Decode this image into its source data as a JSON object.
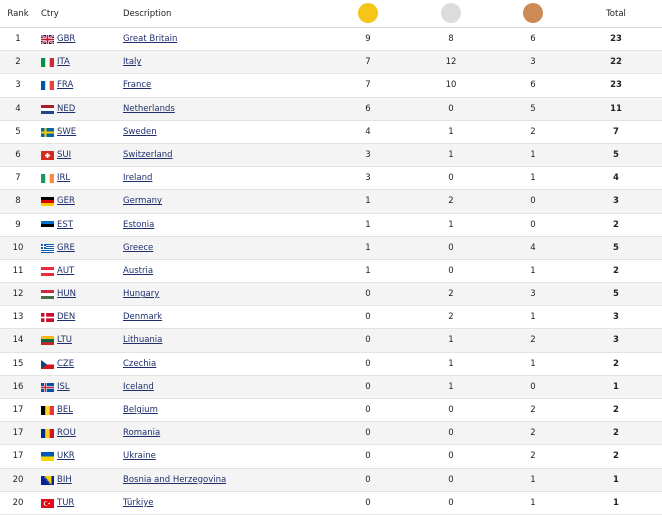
{
  "header": {
    "rank": "Rank",
    "ctry": "Ctry",
    "description": "Description",
    "total": "Total"
  },
  "colors": {
    "gold": "#f5c518",
    "silver": "#dcdcdc",
    "bronze": "#cd8a55",
    "link": "#1f2f6b"
  },
  "rows": [
    {
      "rank": "1",
      "code": "GBR",
      "name": "Great Britain",
      "gold": "9",
      "silver": "8",
      "bronze": "6",
      "total": "23",
      "flag": "gb-flag-icon"
    },
    {
      "rank": "2",
      "code": "ITA",
      "name": "Italy",
      "gold": "7",
      "silver": "12",
      "bronze": "3",
      "total": "22",
      "flag": "it-flag-icon"
    },
    {
      "rank": "3",
      "code": "FRA",
      "name": "France",
      "gold": "7",
      "silver": "10",
      "bronze": "6",
      "total": "23",
      "flag": "fr-flag-icon"
    },
    {
      "rank": "4",
      "code": "NED",
      "name": "Netherlands",
      "gold": "6",
      "silver": "0",
      "bronze": "5",
      "total": "11",
      "flag": "nl-flag-icon"
    },
    {
      "rank": "5",
      "code": "SWE",
      "name": "Sweden",
      "gold": "4",
      "silver": "1",
      "bronze": "2",
      "total": "7",
      "flag": "se-flag-icon"
    },
    {
      "rank": "6",
      "code": "SUI",
      "name": "Switzerland",
      "gold": "3",
      "silver": "1",
      "bronze": "1",
      "total": "5",
      "flag": "ch-flag-icon"
    },
    {
      "rank": "7",
      "code": "IRL",
      "name": "Ireland",
      "gold": "3",
      "silver": "0",
      "bronze": "1",
      "total": "4",
      "flag": "ie-flag-icon"
    },
    {
      "rank": "8",
      "code": "GER",
      "name": "Germany",
      "gold": "1",
      "silver": "2",
      "bronze": "0",
      "total": "3",
      "flag": "de-flag-icon"
    },
    {
      "rank": "9",
      "code": "EST",
      "name": "Estonia",
      "gold": "1",
      "silver": "1",
      "bronze": "0",
      "total": "2",
      "flag": "ee-flag-icon"
    },
    {
      "rank": "10",
      "code": "GRE",
      "name": "Greece",
      "gold": "1",
      "silver": "0",
      "bronze": "4",
      "total": "5",
      "flag": "gr-flag-icon"
    },
    {
      "rank": "11",
      "code": "AUT",
      "name": "Austria",
      "gold": "1",
      "silver": "0",
      "bronze": "1",
      "total": "2",
      "flag": "at-flag-icon"
    },
    {
      "rank": "12",
      "code": "HUN",
      "name": "Hungary",
      "gold": "0",
      "silver": "2",
      "bronze": "3",
      "total": "5",
      "flag": "hu-flag-icon"
    },
    {
      "rank": "13",
      "code": "DEN",
      "name": "Denmark",
      "gold": "0",
      "silver": "2",
      "bronze": "1",
      "total": "3",
      "flag": "dk-flag-icon"
    },
    {
      "rank": "14",
      "code": "LTU",
      "name": "Lithuania",
      "gold": "0",
      "silver": "1",
      "bronze": "2",
      "total": "3",
      "flag": "lt-flag-icon"
    },
    {
      "rank": "15",
      "code": "CZE",
      "name": "Czechia",
      "gold": "0",
      "silver": "1",
      "bronze": "1",
      "total": "2",
      "flag": "cz-flag-icon"
    },
    {
      "rank": "16",
      "code": "ISL",
      "name": "Iceland",
      "gold": "0",
      "silver": "1",
      "bronze": "0",
      "total": "1",
      "flag": "is-flag-icon"
    },
    {
      "rank": "17",
      "code": "BEL",
      "name": "Belgium",
      "gold": "0",
      "silver": "0",
      "bronze": "2",
      "total": "2",
      "flag": "be-flag-icon"
    },
    {
      "rank": "17",
      "code": "ROU",
      "name": "Romania",
      "gold": "0",
      "silver": "0",
      "bronze": "2",
      "total": "2",
      "flag": "ro-flag-icon"
    },
    {
      "rank": "17",
      "code": "UKR",
      "name": "Ukraine",
      "gold": "0",
      "silver": "0",
      "bronze": "2",
      "total": "2",
      "flag": "ua-flag-icon"
    },
    {
      "rank": "20",
      "code": "BIH",
      "name": "Bosnia and Herzegovina",
      "gold": "0",
      "silver": "0",
      "bronze": "1",
      "total": "1",
      "flag": "ba-flag-icon"
    },
    {
      "rank": "20",
      "code": "TUR",
      "name": "Türkiye",
      "gold": "0",
      "silver": "0",
      "bronze": "1",
      "total": "1",
      "flag": "tr-flag-icon"
    }
  ]
}
